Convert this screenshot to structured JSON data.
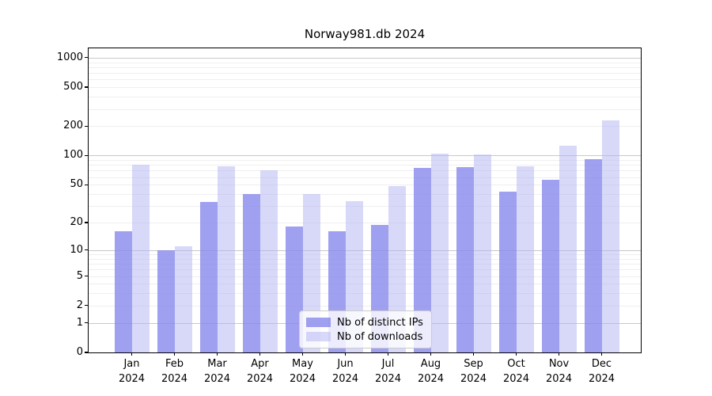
{
  "title": "Norway981.db 2024",
  "chart_data": {
    "type": "bar",
    "title": "Norway981.db 2024",
    "y_scale": "log1p",
    "ylim": [
      0,
      1234
    ],
    "y_ticks": [
      0,
      1,
      2,
      5,
      10,
      20,
      50,
      100,
      200,
      500,
      1000
    ],
    "grid": true,
    "legend_position": "lower center",
    "categories": [
      "Jan",
      "Feb",
      "Mar",
      "Apr",
      "May",
      "Jun",
      "Jul",
      "Aug",
      "Sep",
      "Oct",
      "Nov",
      "Dec"
    ],
    "year_label": "2024",
    "series": [
      {
        "name": "Nb of distinct IPs",
        "color": "#8888ec",
        "alpha": 0.8,
        "values": [
          16,
          10,
          33,
          40,
          18,
          16,
          19,
          74,
          76,
          42,
          56,
          92
        ]
      },
      {
        "name": "Nb of downloads",
        "color": "#b1b1f1",
        "alpha": 0.5,
        "values": [
          80,
          11,
          77,
          71,
          40,
          34,
          48,
          105,
          102,
          78,
          126,
          230
        ]
      }
    ]
  },
  "colors": {
    "major_grid": "#c8c8c8",
    "minor_grid": "#efefef",
    "axis": "#000000",
    "background": "#ffffff"
  }
}
